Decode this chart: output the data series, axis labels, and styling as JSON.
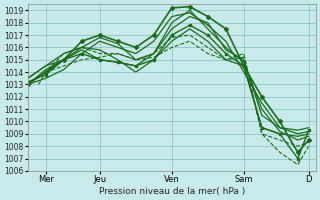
{
  "title": "",
  "xlabel": "Pression niveau de la mer( hPa )",
  "ylabel": "",
  "background_color": "#c8eaea",
  "grid_color": "#7fbfbf",
  "line_color": "#1a6b1a",
  "ylim": [
    1006,
    1019.5
  ],
  "xlim": [
    0,
    8.0
  ],
  "yticks": [
    1006,
    1007,
    1008,
    1009,
    1010,
    1011,
    1012,
    1013,
    1014,
    1015,
    1016,
    1017,
    1018,
    1019
  ],
  "xtick_labels": [
    "Mer",
    "Jeu",
    "Ven",
    "Sam",
    "D"
  ],
  "xtick_pos": [
    0.5,
    2.0,
    4.0,
    6.0,
    7.8
  ],
  "series": [
    {
      "x": [
        0.0,
        0.5,
        1.0,
        1.5,
        2.0,
        2.5,
        3.0,
        3.5,
        4.0,
        4.5,
        5.0,
        5.5,
        6.0,
        6.5,
        7.0,
        7.5,
        7.8
      ],
      "y": [
        1013.0,
        1014.0,
        1015.0,
        1016.5,
        1017.0,
        1016.5,
        1016.0,
        1017.0,
        1019.2,
        1019.3,
        1018.5,
        1017.5,
        1014.5,
        1012.0,
        1010.0,
        1007.5,
        1008.5
      ],
      "style": "-",
      "marker": "D",
      "ms": 2,
      "lw": 1.2
    },
    {
      "x": [
        0.0,
        0.5,
        1.0,
        1.5,
        2.0,
        2.5,
        3.0,
        3.5,
        4.0,
        4.5,
        5.0,
        5.5,
        6.0,
        6.5,
        7.0,
        7.5,
        7.8
      ],
      "y": [
        1013.0,
        1013.5,
        1014.2,
        1015.5,
        1016.5,
        1016.0,
        1015.5,
        1016.5,
        1018.5,
        1018.8,
        1017.8,
        1016.5,
        1014.0,
        1011.5,
        1009.5,
        1009.0,
        1009.2
      ],
      "style": "-",
      "marker": null,
      "ms": 0,
      "lw": 0.9
    },
    {
      "x": [
        0.0,
        0.5,
        1.0,
        1.5,
        2.0,
        2.5,
        3.0,
        3.5,
        4.0,
        4.5,
        5.0,
        5.5,
        6.0,
        6.5,
        7.0,
        7.5,
        7.8
      ],
      "y": [
        1013.0,
        1014.2,
        1015.0,
        1016.0,
        1016.8,
        1016.3,
        1015.0,
        1015.5,
        1018.0,
        1019.0,
        1017.5,
        1016.0,
        1014.8,
        1011.0,
        1009.2,
        1008.5,
        1008.8
      ],
      "style": "-",
      "marker": null,
      "ms": 0,
      "lw": 0.9
    },
    {
      "x": [
        0.0,
        0.5,
        1.0,
        1.5,
        2.0,
        2.5,
        3.0,
        3.5,
        4.0,
        4.5,
        5.0,
        5.5,
        6.0,
        6.5,
        7.0,
        7.5,
        7.8
      ],
      "y": [
        1013.5,
        1014.5,
        1015.0,
        1015.8,
        1015.0,
        1014.8,
        1014.5,
        1015.5,
        1017.5,
        1018.5,
        1018.0,
        1015.8,
        1015.0,
        1010.5,
        1009.5,
        1009.3,
        1009.5
      ],
      "style": "-",
      "marker": null,
      "ms": 0,
      "lw": 0.9
    },
    {
      "x": [
        0.0,
        0.5,
        1.0,
        1.5,
        2.0,
        2.5,
        3.0,
        3.5,
        4.0,
        4.5,
        5.0,
        5.5,
        6.0,
        6.5,
        7.0,
        7.5,
        7.8
      ],
      "y": [
        1013.5,
        1014.5,
        1015.5,
        1016.0,
        1015.8,
        1015.0,
        1014.0,
        1015.0,
        1016.5,
        1017.5,
        1016.5,
        1015.0,
        1014.5,
        1009.5,
        1009.0,
        1008.8,
        1009.0
      ],
      "style": "-",
      "marker": null,
      "ms": 0,
      "lw": 0.9
    },
    {
      "x": [
        0.3,
        0.5,
        1.0,
        1.5,
        2.0,
        2.5,
        3.0,
        3.5,
        4.0,
        4.5,
        5.0,
        5.5,
        6.0,
        6.5,
        7.0,
        7.5,
        7.8
      ],
      "y": [
        1013.0,
        1014.0,
        1015.5,
        1016.0,
        1015.5,
        1015.5,
        1015.0,
        1015.5,
        1016.8,
        1017.0,
        1016.0,
        1015.0,
        1015.2,
        1009.0,
        1008.5,
        1008.0,
        1008.3
      ],
      "style": "--",
      "marker": null,
      "ms": 0,
      "lw": 0.8
    },
    {
      "x": [
        0.5,
        1.0,
        1.5,
        2.0,
        2.5,
        3.0,
        3.5,
        4.0,
        4.5,
        5.0,
        5.5,
        6.0,
        6.5,
        7.0,
        7.5,
        7.8
      ],
      "y": [
        1014.0,
        1014.5,
        1015.0,
        1015.2,
        1015.5,
        1015.0,
        1015.2,
        1016.0,
        1016.5,
        1015.5,
        1015.0,
        1015.5,
        1009.0,
        1007.5,
        1006.5,
        1008.0
      ],
      "style": "--",
      "marker": null,
      "ms": 0,
      "lw": 0.8
    },
    {
      "x": [
        0.0,
        0.5,
        1.0,
        1.5,
        2.0,
        2.5,
        3.0,
        3.5,
        4.0,
        4.5,
        5.0,
        5.5,
        6.0,
        6.5,
        7.0,
        7.5,
        7.8
      ],
      "y": [
        1013.2,
        1013.8,
        1015.0,
        1015.5,
        1015.0,
        1014.8,
        1014.5,
        1015.0,
        1017.0,
        1017.8,
        1017.0,
        1015.5,
        1014.5,
        1009.5,
        1009.0,
        1007.0,
        1009.3
      ],
      "style": "-",
      "marker": "s",
      "ms": 2,
      "lw": 1.0
    }
  ]
}
